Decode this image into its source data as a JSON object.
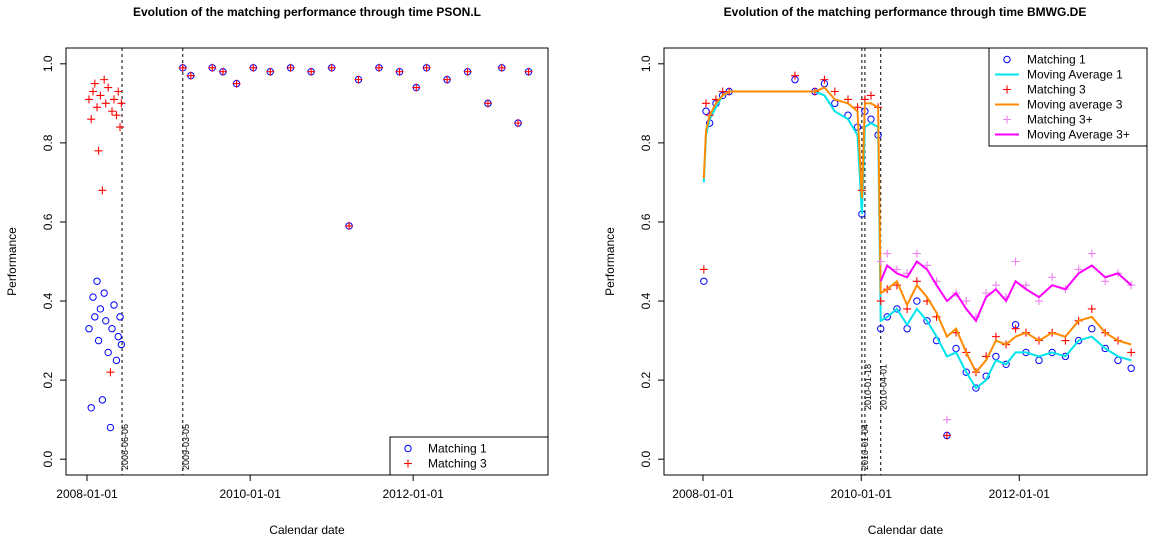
{
  "chart_data": [
    {
      "type": "scatter",
      "title": "Evolution of the matching performance through time PSON.L",
      "x_label": "Calendar date",
      "y_label": "Performance",
      "xlim": [
        "2007-09-29",
        "2013-08-27"
      ],
      "xticks": [
        "2008-01-01",
        "2010-01-01",
        "2012-01-01"
      ],
      "ylim": [
        -0.04,
        1.04
      ],
      "yticks": [
        {
          "value": 0,
          "label": "0.0"
        },
        0.2,
        0.4,
        0.6,
        0.8,
        {
          "value": 1,
          "label": "1.0"
        }
      ],
      "vlines": [
        "2008-06-06",
        "2009-03-05"
      ],
      "legend": "bottomright",
      "x": [
        "2008-01-10",
        "2008-01-20",
        "2008-01-28",
        "2008-02-05",
        "2008-02-15",
        "2008-02-22",
        "2008-03-01",
        "2008-03-10",
        "2008-03-18",
        "2008-03-25",
        "2008-04-05",
        "2008-04-15",
        "2008-04-22",
        "2008-05-01",
        "2008-05-12",
        "2008-05-20",
        "2008-05-28",
        "2008-06-03",
        "2009-03-05",
        "2009-04-10",
        "2009-07-15",
        "2009-09-01",
        "2009-11-01",
        "2010-01-15",
        "2010-04-01",
        "2010-07-01",
        "2010-10-01",
        "2011-01-01",
        "2011-03-20",
        "2011-05-01",
        "2011-08-01",
        "2011-11-01",
        "2012-01-15",
        "2012-03-01",
        "2012-06-01",
        "2012-09-01",
        "2012-12-01",
        "2013-02-01",
        "2013-04-15",
        "2013-06-01"
      ],
      "series": [
        {
          "name": "Matching 1",
          "color": "#0000ff",
          "mode": "circle",
          "values": [
            0.33,
            0.13,
            0.41,
            0.36,
            0.45,
            0.3,
            0.38,
            0.15,
            0.42,
            0.35,
            0.27,
            0.08,
            0.33,
            0.39,
            0.25,
            0.31,
            0.36,
            0.29,
            0.99,
            0.97,
            0.99,
            0.98,
            0.95,
            0.99,
            0.98,
            0.99,
            0.98,
            0.99,
            0.59,
            0.96,
            0.99,
            0.98,
            0.94,
            0.99,
            0.96,
            0.98,
            0.9,
            0.99,
            0.85,
            0.98
          ]
        },
        {
          "name": "Matching 3",
          "color": "#ff0000",
          "mode": "plus",
          "values": [
            0.91,
            0.86,
            0.93,
            0.95,
            0.89,
            0.78,
            0.92,
            0.68,
            0.96,
            0.9,
            0.94,
            0.22,
            0.88,
            0.91,
            0.87,
            0.93,
            0.84,
            0.9,
            0.99,
            0.97,
            0.99,
            0.98,
            0.95,
            0.99,
            0.98,
            0.99,
            0.98,
            0.99,
            0.59,
            0.96,
            0.99,
            0.98,
            0.94,
            0.99,
            0.96,
            0.98,
            0.9,
            0.99,
            0.85,
            0.98
          ]
        }
      ]
    },
    {
      "type": "scatter",
      "title": "Evolution of the matching performance through time BMWG.DE",
      "x_label": "Calendar date",
      "y_label": "Performance",
      "xlim": [
        "2007-07-05",
        "2013-08-13"
      ],
      "xticks": [
        "2008-01-01",
        "2010-01-01",
        "2012-01-01"
      ],
      "ylim": [
        -0.04,
        1.04
      ],
      "yticks": [
        {
          "value": 0,
          "label": "0.0"
        },
        0.2,
        0.4,
        0.6,
        0.8,
        {
          "value": 1,
          "label": "1.0"
        }
      ],
      "vlines": [
        "2010-01-04",
        "2010-01-18",
        "2010-04-01"
      ],
      "legend": "topright",
      "x": [
        "2008-01-05",
        "2008-01-15",
        "2008-02-01",
        "2008-03-01",
        "2008-04-01",
        "2008-05-01",
        "2008-08-01",
        "2009-01-01",
        "2009-03-01",
        "2009-06-01",
        "2009-07-15",
        "2009-09-01",
        "2009-11-01",
        "2009-12-15",
        "2010-01-04",
        "2010-01-18",
        "2010-02-15",
        "2010-03-20",
        "2010-04-01",
        "2010-05-01",
        "2010-06-15",
        "2010-08-01",
        "2010-09-15",
        "2010-11-01",
        "2010-12-15",
        "2011-02-01",
        "2011-03-15",
        "2011-05-01",
        "2011-06-15",
        "2011-08-01",
        "2011-09-15",
        "2011-11-01",
        "2011-12-15",
        "2012-02-01",
        "2012-04-01",
        "2012-06-01",
        "2012-08-01",
        "2012-10-01",
        "2012-12-01",
        "2013-02-01",
        "2013-04-01",
        "2013-06-01"
      ],
      "series": [
        {
          "name": "Matching 1",
          "color": "#0000ff",
          "mode": "circle",
          "values": [
            0.45,
            0.88,
            0.85,
            0.9,
            0.92,
            0.93,
            null,
            null,
            0.96,
            0.93,
            0.95,
            0.9,
            0.87,
            0.84,
            0.62,
            0.88,
            0.86,
            0.82,
            0.33,
            0.36,
            0.38,
            0.33,
            0.4,
            0.35,
            0.3,
            0.06,
            0.28,
            0.22,
            0.18,
            0.21,
            0.26,
            0.24,
            0.34,
            0.27,
            0.25,
            0.27,
            0.26,
            0.3,
            0.33,
            0.28,
            0.25,
            0.23
          ]
        },
        {
          "name": "Moving Average 1",
          "color": "#00e5ee",
          "mode": "line",
          "values": [
            0.7,
            0.82,
            0.86,
            0.89,
            0.92,
            0.93,
            0.93,
            0.93,
            0.93,
            0.93,
            0.92,
            0.88,
            0.86,
            0.82,
            0.62,
            0.84,
            0.85,
            0.84,
            0.35,
            0.36,
            0.38,
            0.34,
            0.38,
            0.35,
            0.31,
            0.26,
            0.27,
            0.22,
            0.18,
            0.2,
            0.25,
            0.24,
            0.27,
            0.27,
            0.26,
            0.27,
            0.26,
            0.3,
            0.31,
            0.28,
            0.26,
            0.25
          ]
        },
        {
          "name": "Matching 3",
          "color": "#ff0000",
          "mode": "plus",
          "values": [
            0.48,
            0.9,
            0.87,
            0.91,
            0.93,
            0.93,
            null,
            null,
            0.97,
            0.93,
            0.96,
            0.93,
            0.91,
            0.89,
            0.68,
            0.91,
            0.92,
            0.89,
            0.4,
            0.43,
            0.44,
            0.38,
            0.45,
            0.4,
            0.36,
            0.06,
            0.32,
            0.27,
            0.22,
            0.26,
            0.31,
            0.29,
            0.33,
            0.32,
            0.3,
            0.32,
            0.3,
            0.35,
            0.38,
            0.32,
            0.3,
            0.27
          ]
        },
        {
          "name": "Moving average 3",
          "color": "#ff8c00",
          "mode": "line",
          "values": [
            0.71,
            0.83,
            0.87,
            0.9,
            0.92,
            0.93,
            0.93,
            0.93,
            0.93,
            0.93,
            0.94,
            0.91,
            0.9,
            0.88,
            0.66,
            0.9,
            0.9,
            0.89,
            0.42,
            0.43,
            0.45,
            0.39,
            0.44,
            0.41,
            0.37,
            0.31,
            0.33,
            0.27,
            0.22,
            0.25,
            0.3,
            0.29,
            0.31,
            0.32,
            0.3,
            0.32,
            0.31,
            0.35,
            0.36,
            0.32,
            0.3,
            0.29
          ]
        },
        {
          "name": "Matching 3+",
          "color": "#ee82ee",
          "mode": "plus",
          "values": [
            null,
            null,
            null,
            null,
            null,
            null,
            null,
            null,
            null,
            null,
            null,
            null,
            null,
            null,
            null,
            null,
            null,
            null,
            0.5,
            0.52,
            0.48,
            0.47,
            0.52,
            0.49,
            0.45,
            0.1,
            0.42,
            0.4,
            0.36,
            0.42,
            0.44,
            0.41,
            0.5,
            0.44,
            0.4,
            0.46,
            0.43,
            0.48,
            0.52,
            0.45,
            0.47,
            0.44
          ]
        },
        {
          "name": "Moving Average 3+",
          "color": "#ff00ff",
          "mode": "line",
          "values": [
            null,
            null,
            null,
            null,
            null,
            null,
            null,
            null,
            null,
            null,
            null,
            null,
            null,
            null,
            null,
            null,
            null,
            null,
            0.45,
            0.49,
            0.47,
            0.46,
            0.5,
            0.48,
            0.44,
            0.4,
            0.42,
            0.38,
            0.35,
            0.41,
            0.43,
            0.4,
            0.45,
            0.43,
            0.41,
            0.44,
            0.43,
            0.47,
            0.49,
            0.46,
            0.47,
            0.44
          ]
        }
      ]
    }
  ]
}
